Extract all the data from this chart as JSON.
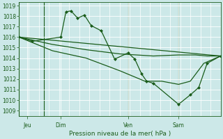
{
  "xlabel": "Pression niveau de la mer( hPa )",
  "ylim": [
    1008.5,
    1019.3
  ],
  "yticks": [
    1009,
    1010,
    1011,
    1012,
    1013,
    1014,
    1015,
    1016,
    1017,
    1018,
    1019
  ],
  "bg_color": "#cce8e8",
  "grid_color": "#ffffff",
  "line_color": "#1a5c1a",
  "day_labels": [
    "Jeu",
    "Dim",
    "Ven",
    "Sam"
  ],
  "day_positions": [
    0.5,
    2.5,
    6.5,
    9.5
  ],
  "xlim": [
    0,
    12.0
  ],
  "line1_x": [
    0.0,
    0.8,
    2.5,
    2.8,
    3.1,
    3.5,
    3.9,
    4.3,
    4.9,
    5.7,
    6.5,
    6.9,
    7.3,
    7.6,
    8.0,
    9.5,
    10.2,
    10.7,
    11.2,
    12.0
  ],
  "line1_y": [
    1016.0,
    1015.6,
    1016.0,
    1018.4,
    1018.5,
    1017.8,
    1018.1,
    1017.1,
    1016.6,
    1013.9,
    1014.5,
    1013.9,
    1012.5,
    1011.8,
    1011.6,
    1009.6,
    1010.5,
    1011.2,
    1013.5,
    1014.2
  ],
  "line2_x": [
    0.0,
    12.0
  ],
  "line2_y": [
    1016.0,
    1014.2
  ],
  "line3_x": [
    0.0,
    2.0,
    4.0,
    6.0,
    8.0,
    9.5,
    10.5,
    11.2,
    12.0
  ],
  "line3_y": [
    1016.0,
    1015.3,
    1014.8,
    1014.4,
    1014.2,
    1014.3,
    1014.3,
    1014.2,
    1014.2
  ],
  "line4_x": [
    0.0,
    2.0,
    4.0,
    6.0,
    7.5,
    8.5,
    9.5,
    10.2,
    11.0,
    12.0
  ],
  "line4_y": [
    1016.0,
    1014.7,
    1014.0,
    1012.8,
    1011.8,
    1011.8,
    1011.5,
    1011.8,
    1013.5,
    1014.2
  ],
  "vline_positions": [
    1.5,
    6.5,
    9.5
  ],
  "marker": "D",
  "markersize": 2.0,
  "linewidth": 0.9,
  "tick_fontsize": 5.5,
  "xlabel_fontsize": 6.5
}
